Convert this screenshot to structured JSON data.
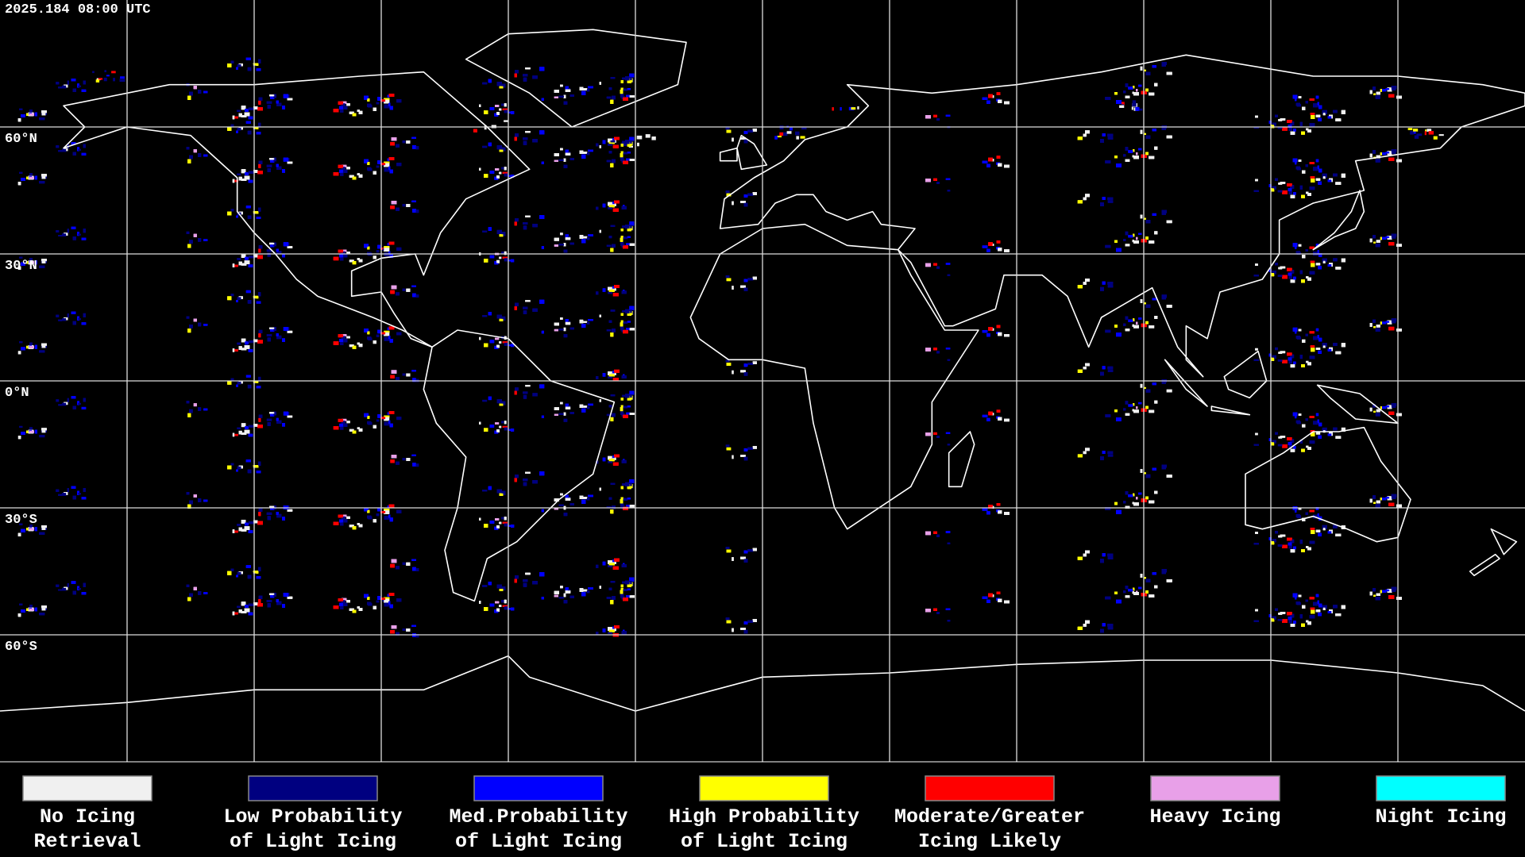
{
  "header": {
    "timestamp": "2025.184 08:00 UTC"
  },
  "map": {
    "latitude_labels": [
      "60°N",
      "30°N",
      "0°N",
      "30°S",
      "60°S"
    ]
  },
  "legend": {
    "items": [
      {
        "lines": [
          "No Icing",
          "Retrieval"
        ],
        "color": "#f0f0f0"
      },
      {
        "lines": [
          "Low Probability",
          "of Light Icing"
        ],
        "color": "#000080"
      },
      {
        "lines": [
          "Med.Probability",
          "of Light Icing"
        ],
        "color": "#0000ff"
      },
      {
        "lines": [
          "High Probability",
          "of Light Icing"
        ],
        "color": "#ffff00"
      },
      {
        "lines": [
          "Moderate/Greater",
          "Icing Likely"
        ],
        "color": "#ff0000"
      },
      {
        "lines": [
          "Heavy Icing"
        ],
        "color": "#e8a0e8"
      },
      {
        "lines": [
          "Night Icing"
        ],
        "color": "#00ffff"
      }
    ]
  }
}
